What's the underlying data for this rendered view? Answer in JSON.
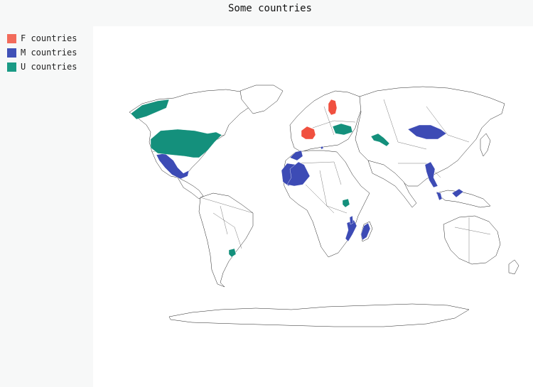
{
  "title": "Some countries",
  "legend": [
    {
      "label": "F countries",
      "color": "#f26b5b",
      "hex": "#f26b5b"
    },
    {
      "label": "M countries",
      "color": "#4051b7",
      "hex": "#4051b7"
    },
    {
      "label": "U countries",
      "color": "#1a9a85",
      "hex": "#1a9a85"
    }
  ],
  "colors": {
    "F": "#f0503f",
    "M": "#3d4bb5",
    "U": "#14907c",
    "background": "#f7f8f8",
    "map_background": "#ffffff"
  },
  "groups": {
    "F": [
      "France",
      "Finland"
    ],
    "M": [
      "Mexico",
      "Mauritania",
      "Mali",
      "Morocco",
      "Myanmar",
      "Malaysia",
      "Mongolia",
      "Mozambique",
      "Madagascar",
      "Malawi",
      "Montenegro"
    ],
    "U": [
      "United States",
      "Ukraine",
      "Uzbekistan",
      "Uganda",
      "Uruguay"
    ]
  }
}
